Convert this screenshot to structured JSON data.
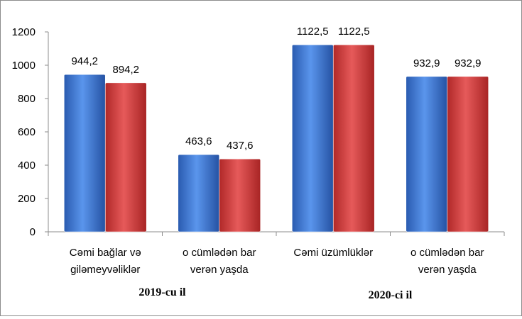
{
  "chart_data": {
    "type": "bar",
    "categories": [
      [
        "Cəmi bağlar və",
        "giləmeyvəliklər"
      ],
      [
        "o cümlədən bar",
        "verən yaşda"
      ],
      [
        "Cəmi üzümlüklər"
      ],
      [
        "o cümlədən bar",
        "verən yaşda"
      ]
    ],
    "groups": [
      {
        "label": "2019-cu il",
        "categories": [
          0,
          1
        ]
      },
      {
        "label": "2020-ci il",
        "categories": [
          2,
          3
        ]
      }
    ],
    "series": [
      {
        "values": [
          944.2,
          463.6,
          1122.5,
          932.9
        ],
        "labels": [
          "944,2",
          "463,6",
          "1122,5",
          "932,9"
        ],
        "color": "#3a75d4"
      },
      {
        "values": [
          894.2,
          437.6,
          1122.5,
          932.9
        ],
        "labels": [
          "894,2",
          "437,6",
          "1122,5",
          "932,9"
        ],
        "color": "#d63a3a"
      }
    ],
    "ylim": [
      0,
      1200
    ],
    "yticks": [
      "0",
      "200",
      "400",
      "600",
      "800",
      "1000",
      "1200"
    ],
    "grid": false,
    "legend": "none"
  }
}
